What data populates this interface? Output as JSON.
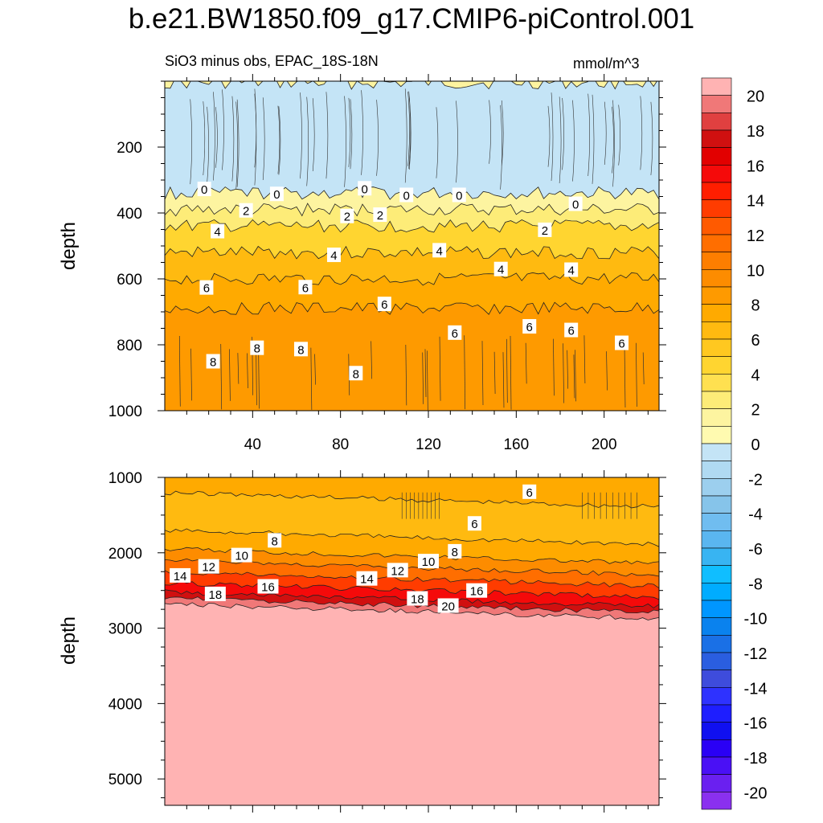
{
  "title": "b.e21.BW1850.f09_g17.CMIP6-piControl.001",
  "subtitle_left": "SiO3 minus obs, EPAC_18S-18N",
  "subtitle_right": "mmol/m^3",
  "chart_data": {
    "type": "heatmap",
    "variable": "SiO3 minus obs",
    "region": "EPAC_18S-18N",
    "units": "mmol/m^3",
    "colorbar": {
      "levels": [
        -21,
        -20,
        -19,
        -18,
        -17,
        -16,
        -15,
        -14,
        -13,
        -12,
        -11,
        -10,
        -9,
        -8,
        -7,
        -6,
        -5,
        -4,
        -3,
        -2,
        -1,
        0,
        1,
        2,
        3,
        4,
        5,
        6,
        7,
        8,
        9,
        10,
        11,
        12,
        13,
        14,
        15,
        16,
        17,
        18,
        19,
        20,
        21
      ],
      "tick_labels": [
        "20",
        "18",
        "16",
        "14",
        "12",
        "10",
        "8",
        "6",
        "4",
        "2",
        "0",
        "-2",
        "-4",
        "-6",
        "-8",
        "-10",
        "-12",
        "-14",
        "-16",
        "-18",
        "-20"
      ],
      "colors": [
        "#ffb3b3",
        "#f07878",
        "#e04040",
        "#d01010",
        "#e20000",
        "#f50a0a",
        "#ff1e00",
        "#ff3c00",
        "#ff5a00",
        "#ff6e00",
        "#fd7e00",
        "#fd8c00",
        "#fe9a00",
        "#ffaa00",
        "#ffba10",
        "#ffc820",
        "#ffd530",
        "#ffe050",
        "#fdec78",
        "#fdf4a0",
        "#fffab0",
        "#c4e4f6",
        "#b0daf2",
        "#9ccfee",
        "#86c4ea",
        "#70bdf0",
        "#5ab6f0",
        "#38b4f2",
        "#10beff",
        "#00acff",
        "#0096ff",
        "#0a82ee",
        "#1a70e6",
        "#2a5ee0",
        "#3e4cdc",
        "#2e32ff",
        "#1e1eff",
        "#1010f0",
        "#2a00f5",
        "#4a10f5",
        "#6a20f0",
        "#8a30ef"
      ]
    },
    "panels": [
      {
        "name": "upper",
        "ylabel": "depth",
        "ylim": [
          1000,
          0
        ],
        "xlim": [
          0,
          225
        ],
        "xticks": [
          40,
          80,
          120,
          160,
          200
        ],
        "yticks": [
          200,
          400,
          600,
          800,
          1000
        ],
        "layers": [
          {
            "top": 0,
            "bottom": 5,
            "value": 1
          },
          {
            "top": 5,
            "bottom": 340,
            "value": -1
          },
          {
            "top": 340,
            "bottom": 390,
            "value": 1
          },
          {
            "top": 390,
            "bottom": 440,
            "value": 2.5
          },
          {
            "top": 440,
            "bottom": 520,
            "value": 4.5
          },
          {
            "top": 520,
            "bottom": 600,
            "value": 6.5
          },
          {
            "top": 600,
            "bottom": 690,
            "value": 7.5
          },
          {
            "top": 690,
            "bottom": 1000,
            "value": 8.5
          }
        ],
        "contour_labels": [
          {
            "text": "0",
            "x": 18,
            "y": 327
          },
          {
            "text": "0",
            "x": 51,
            "y": 342
          },
          {
            "text": "0",
            "x": 91,
            "y": 325
          },
          {
            "text": "0",
            "x": 110,
            "y": 345
          },
          {
            "text": "0",
            "x": 134,
            "y": 345
          },
          {
            "text": "0",
            "x": 187,
            "y": 372
          },
          {
            "text": "2",
            "x": 37,
            "y": 392
          },
          {
            "text": "2",
            "x": 83,
            "y": 409
          },
          {
            "text": "2",
            "x": 98,
            "y": 405
          },
          {
            "text": "2",
            "x": 173,
            "y": 451
          },
          {
            "text": "4",
            "x": 24,
            "y": 455
          },
          {
            "text": "4",
            "x": 77,
            "y": 527
          },
          {
            "text": "4",
            "x": 125,
            "y": 513
          },
          {
            "text": "4",
            "x": 153,
            "y": 570
          },
          {
            "text": "4",
            "x": 185,
            "y": 572
          },
          {
            "text": "6",
            "x": 19,
            "y": 626
          },
          {
            "text": "6",
            "x": 64,
            "y": 625
          },
          {
            "text": "6",
            "x": 100,
            "y": 676
          },
          {
            "text": "6",
            "x": 132,
            "y": 763
          },
          {
            "text": "6",
            "x": 166,
            "y": 744
          },
          {
            "text": "6",
            "x": 185,
            "y": 755
          },
          {
            "text": "6",
            "x": 208,
            "y": 794
          },
          {
            "text": "8",
            "x": 22,
            "y": 850
          },
          {
            "text": "8",
            "x": 42,
            "y": 809
          },
          {
            "text": "8",
            "x": 62,
            "y": 813
          },
          {
            "text": "8",
            "x": 87,
            "y": 886
          }
        ]
      },
      {
        "name": "lower",
        "ylabel": "depth",
        "ylim": [
          5350,
          1000
        ],
        "xlim": [
          0,
          225
        ],
        "xticks": [],
        "yticks": [
          1000,
          2000,
          3000,
          4000,
          5000
        ],
        "layers": [
          {
            "top": 1000,
            "bottom": 1200,
            "value": 7.5
          },
          {
            "top": 1200,
            "bottom": 1700,
            "value": 6.5
          },
          {
            "top": 1700,
            "bottom": 1950,
            "value": 7.5
          },
          {
            "top": 1950,
            "bottom": 2100,
            "value": 9.5
          },
          {
            "top": 2100,
            "bottom": 2250,
            "value": 11.5
          },
          {
            "top": 2250,
            "bottom": 2400,
            "value": 13.5
          },
          {
            "top": 2400,
            "bottom": 2520,
            "value": 15.5
          },
          {
            "top": 2520,
            "bottom": 2600,
            "value": 17.5
          },
          {
            "top": 2600,
            "bottom": 2680,
            "value": 19.5
          },
          {
            "top": 2680,
            "bottom": 5350,
            "value": 20.5
          }
        ],
        "contour_labels": [
          {
            "text": "6",
            "x": 166,
            "y": 1190
          },
          {
            "text": "6",
            "x": 141,
            "y": 1610
          },
          {
            "text": "8",
            "x": 50,
            "y": 1835
          },
          {
            "text": "8",
            "x": 132,
            "y": 1980
          },
          {
            "text": "10",
            "x": 35,
            "y": 2030
          },
          {
            "text": "10",
            "x": 120,
            "y": 2110
          },
          {
            "text": "12",
            "x": 20,
            "y": 2180
          },
          {
            "text": "12",
            "x": 106,
            "y": 2230
          },
          {
            "text": "14",
            "x": 7,
            "y": 2300
          },
          {
            "text": "14",
            "x": 92,
            "y": 2340
          },
          {
            "text": "16",
            "x": 47,
            "y": 2445
          },
          {
            "text": "16",
            "x": 142,
            "y": 2500
          },
          {
            "text": "18",
            "x": 23,
            "y": 2545
          },
          {
            "text": "18",
            "x": 115,
            "y": 2605
          },
          {
            "text": "20",
            "x": 129,
            "y": 2700
          }
        ]
      }
    ]
  }
}
